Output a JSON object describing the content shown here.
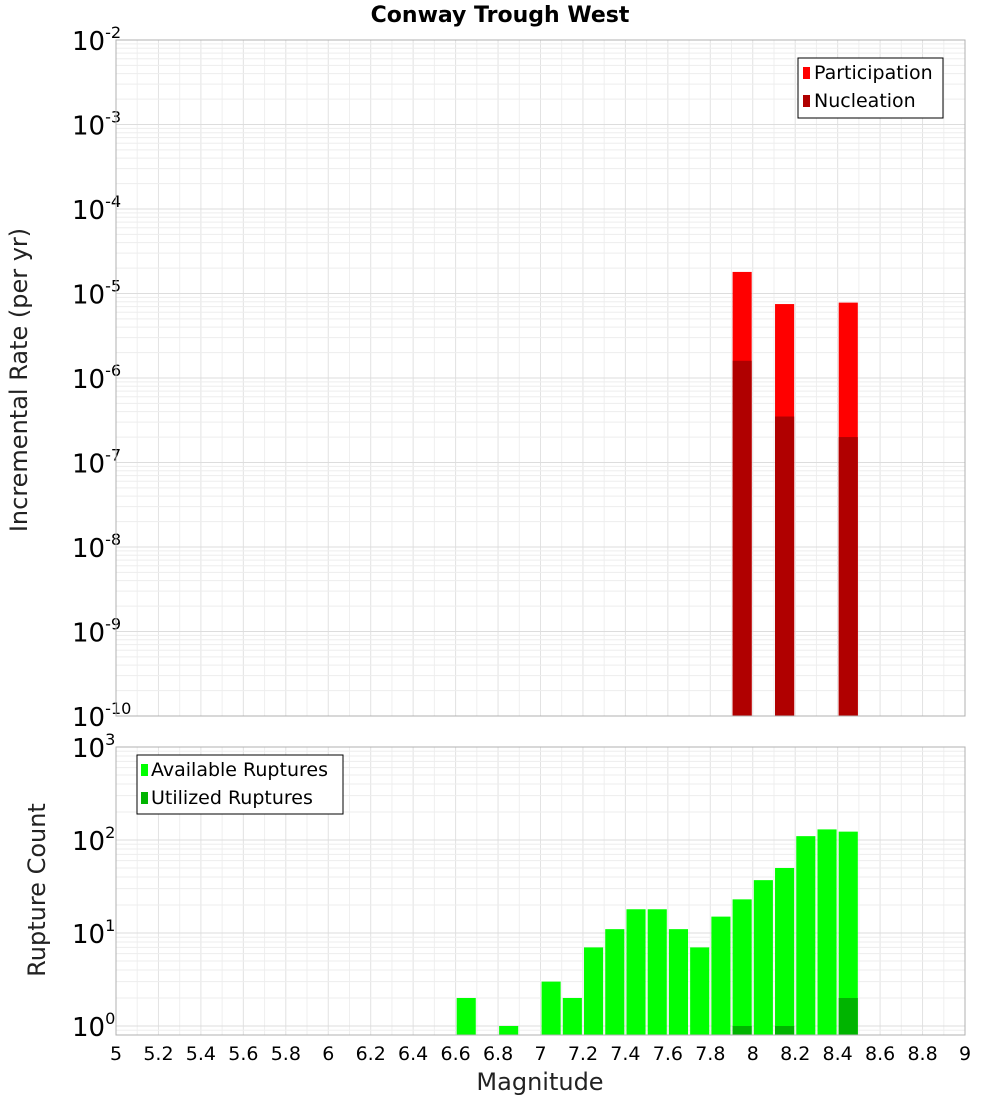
{
  "chart_data": [
    {
      "type": "bar",
      "title": "Conway Trough West",
      "ylabel": "Incremental Rate (per yr)",
      "xlabel": "",
      "xlim": [
        5,
        9
      ],
      "ylim": [
        1e-10,
        0.01
      ],
      "yscale": "log",
      "bar_width": 0.09,
      "legend": {
        "position": "top-right",
        "entries": [
          "Participation",
          "Nucleation"
        ]
      },
      "x": [
        7.95,
        8.15,
        8.45
      ],
      "series": [
        {
          "name": "Participation",
          "color": "#ff0000",
          "values": [
            1.8e-05,
            7.5e-06,
            7.8e-06
          ]
        },
        {
          "name": "Nucleation",
          "color": "#b00000",
          "values": [
            1.6e-06,
            3.5e-07,
            2e-07
          ]
        }
      ],
      "yticks": [
        {
          "base": "10",
          "exp": "-2",
          "value": 0.01
        },
        {
          "base": "10",
          "exp": "-3",
          "value": 0.001
        },
        {
          "base": "10",
          "exp": "-4",
          "value": 0.0001
        },
        {
          "base": "10",
          "exp": "-5",
          "value": 1e-05
        },
        {
          "base": "10",
          "exp": "-6",
          "value": 1e-06
        },
        {
          "base": "10",
          "exp": "-7",
          "value": 1e-07
        },
        {
          "base": "10",
          "exp": "-8",
          "value": 1e-08
        },
        {
          "base": "10",
          "exp": "-9",
          "value": 1e-09
        },
        {
          "base": "10",
          "exp": "-10",
          "value": 1e-10
        }
      ],
      "grid": true
    },
    {
      "type": "bar",
      "ylabel": "Rupture Count",
      "xlabel": "Magnitude",
      "xlim": [
        5,
        9
      ],
      "ylim": [
        0.8,
        1000
      ],
      "yscale": "log",
      "bar_width": 0.09,
      "legend": {
        "position": "top-left",
        "entries": [
          "Available Ruptures",
          "Utilized Ruptures"
        ]
      },
      "x": [
        6.65,
        6.75,
        6.85,
        6.95,
        7.05,
        7.15,
        7.25,
        7.35,
        7.45,
        7.55,
        7.65,
        7.75,
        7.85,
        7.95,
        8.05,
        8.15,
        8.25,
        8.35,
        8.45
      ],
      "series": [
        {
          "name": "Available Ruptures",
          "color": "#00ff00",
          "values": [
            2,
            0,
            1,
            0,
            3,
            2,
            7,
            11,
            18,
            18,
            11,
            7,
            15,
            23,
            37,
            50,
            110,
            130,
            123
          ]
        },
        {
          "name": "Utilized Ruptures",
          "color": "#00b400",
          "values": [
            0,
            0,
            0,
            0,
            0,
            0,
            0,
            0,
            0,
            0,
            0,
            0,
            0,
            1,
            0,
            1,
            0,
            0,
            2
          ]
        }
      ],
      "yticks": [
        {
          "base": "10",
          "exp": "3",
          "value": 1000
        },
        {
          "base": "10",
          "exp": "2",
          "value": 100
        },
        {
          "base": "10",
          "exp": "1",
          "value": 10
        },
        {
          "base": "10",
          "exp": "0",
          "value": 1
        }
      ],
      "xticks": [
        "5",
        "5.2",
        "5.4",
        "5.6",
        "5.8",
        "6",
        "6.2",
        "6.4",
        "6.6",
        "6.8",
        "7",
        "7.2",
        "7.4",
        "7.6",
        "7.8",
        "8",
        "8.2",
        "8.4",
        "8.6",
        "8.8",
        "9"
      ],
      "grid": true
    }
  ]
}
